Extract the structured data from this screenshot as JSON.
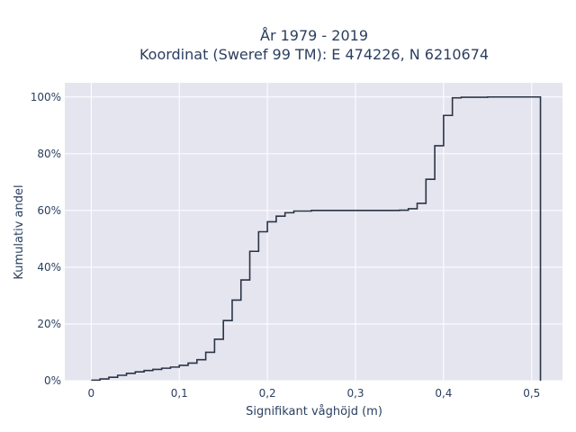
{
  "chart_data": {
    "type": "line",
    "subtype": "cumulative-step",
    "title_line1": "År 1979 - 2019",
    "title_line2": "Koordinat (Sweref 99 TM): E 474226, N 6210674",
    "xlabel": "Signifikant våghöjd (m)",
    "ylabel": "Kumulativ andel",
    "xlim": [
      -0.03,
      0.535
    ],
    "ylim": [
      0,
      1.05
    ],
    "x_ticks": [
      0,
      0.1,
      0.2,
      0.3,
      0.4,
      0.5
    ],
    "x_tick_labels": [
      "0",
      "0,1",
      "0,2",
      "0,3",
      "0,4",
      "0,5"
    ],
    "y_ticks": [
      0,
      0.2,
      0.4,
      0.6,
      0.8,
      1.0
    ],
    "y_tick_labels": [
      "0%",
      "20%",
      "40%",
      "60%",
      "80%",
      "100%"
    ],
    "grid": true,
    "line_color": "#2a3444",
    "background_color": "#e5e5f0",
    "series": [
      {
        "x": [
          0,
          0.01,
          0.02,
          0.03,
          0.04,
          0.05,
          0.06,
          0.07,
          0.08,
          0.09,
          0.1,
          0.11,
          0.12,
          0.13,
          0.14,
          0.15,
          0.16,
          0.17,
          0.18,
          0.19,
          0.2,
          0.21,
          0.22,
          0.23,
          0.25,
          0.3,
          0.35,
          0.36,
          0.37,
          0.38,
          0.39,
          0.4,
          0.41,
          0.42,
          0.45,
          0.48,
          0.51
        ],
        "y": [
          0.002,
          0.006,
          0.012,
          0.019,
          0.026,
          0.031,
          0.036,
          0.04,
          0.044,
          0.048,
          0.054,
          0.062,
          0.074,
          0.1,
          0.146,
          0.212,
          0.284,
          0.355,
          0.456,
          0.525,
          0.56,
          0.58,
          0.592,
          0.598,
          0.6,
          0.6,
          0.601,
          0.606,
          0.625,
          0.71,
          0.828,
          0.935,
          0.997,
          0.999,
          1.0,
          1.0,
          1.0
        ]
      }
    ]
  }
}
